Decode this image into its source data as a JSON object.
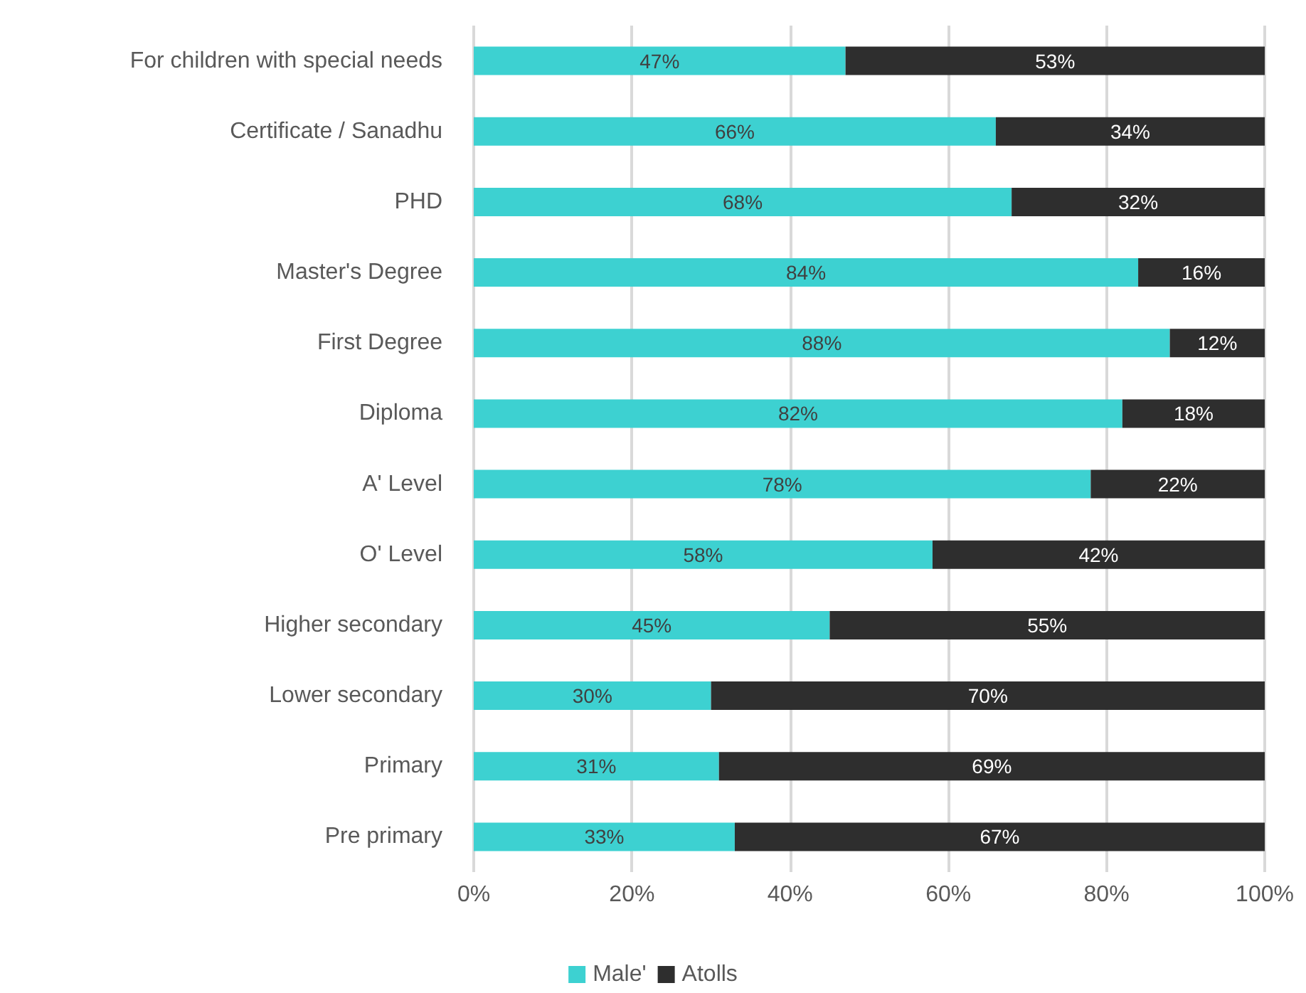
{
  "chart_data": {
    "type": "bar",
    "orientation": "horizontal",
    "stacked": true,
    "categories": [
      "For children with special needs",
      "Certificate / Sanadhu",
      "PHD",
      "Master's Degree",
      "First Degree",
      "Diploma",
      "A' Level",
      "O' Level",
      "Higher secondary",
      "Lower secondary",
      "Primary",
      "Pre primary"
    ],
    "series": [
      {
        "name": "Male'",
        "color": "#3dd1d1",
        "values": [
          47,
          66,
          68,
          84,
          88,
          82,
          78,
          58,
          45,
          30,
          31,
          33
        ],
        "value_labels": [
          "47%",
          "66%",
          "68%",
          "84%",
          "88%",
          "82%",
          "78%",
          "58%",
          "45%",
          "30%",
          "31%",
          "33%"
        ]
      },
      {
        "name": "Atolls",
        "color": "#2e2e2e",
        "values": [
          53,
          34,
          32,
          16,
          12,
          18,
          22,
          42,
          55,
          70,
          69,
          67
        ],
        "value_labels": [
          "53%",
          "34%",
          "32%",
          "16%",
          "12%",
          "18%",
          "22%",
          "42%",
          "55%",
          "70%",
          "69%",
          "67%"
        ]
      }
    ],
    "xlim": [
      0,
      100
    ],
    "xticks": [
      {
        "value": 0,
        "label": "0%"
      },
      {
        "value": 20,
        "label": "20%"
      },
      {
        "value": 40,
        "label": "40%"
      },
      {
        "value": 60,
        "label": "60%"
      },
      {
        "value": 80,
        "label": "80%"
      },
      {
        "value": 100,
        "label": "100%"
      }
    ],
    "grid": "x",
    "legend": "bottom"
  }
}
